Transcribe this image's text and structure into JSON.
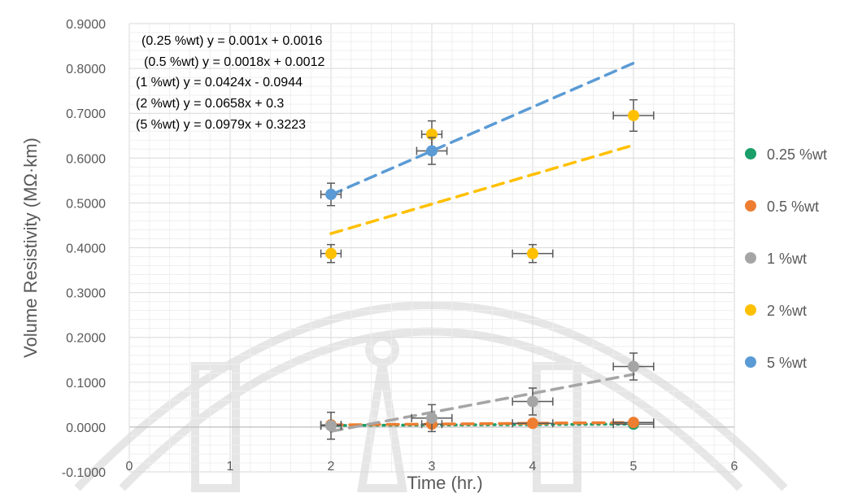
{
  "chart_data": {
    "type": "scatter",
    "title": "",
    "xlabel": "Time (hr.)",
    "ylabel": "Volume Resistivity (MΩ·km)",
    "xlim": [
      0,
      6
    ],
    "ylim": [
      -0.1,
      0.9
    ],
    "x_ticks": [
      "0",
      "1",
      "2",
      "3",
      "4",
      "5",
      "6"
    ],
    "y_ticks": [
      "-0.1000",
      "0.0000",
      "0.1000",
      "0.2000",
      "0.3000",
      "0.4000",
      "0.5000",
      "0.6000",
      "0.7000",
      "0.8000",
      "0.9000"
    ],
    "grid": true,
    "legend_position": "right",
    "series": [
      {
        "name": "0.25 %wt",
        "color": "#1a9e6a",
        "trend_style": "dotted",
        "points": [
          {
            "x": 2,
            "y": 0.0036,
            "xerr": 0.1,
            "yerr": 0.005
          },
          {
            "x": 5,
            "y": 0.0066,
            "xerr": 0.2,
            "yerr": 0.006
          }
        ],
        "trendline": {
          "slope": 0.001,
          "intercept": 0.0016,
          "x_range": [
            2,
            5
          ]
        },
        "equation": "(0.25 %wt)  y = 0.001x + 0.0016"
      },
      {
        "name": "0.5 %wt",
        "color": "#ed7d31",
        "trend_style": "dashed",
        "points": [
          {
            "x": 2,
            "y": 0.0048,
            "xerr": 0.1,
            "yerr": 0.005
          },
          {
            "x": 3,
            "y": 0.0066,
            "xerr": 0.1,
            "yerr": 0.006
          },
          {
            "x": 4,
            "y": 0.0084,
            "xerr": 0.2,
            "yerr": 0.006
          },
          {
            "x": 5,
            "y": 0.0102,
            "xerr": 0.2,
            "yerr": 0.006
          }
        ],
        "trendline": {
          "slope": 0.0018,
          "intercept": 0.0012,
          "x_range": [
            2,
            5
          ]
        },
        "equation": "(0.5 %wt)  y = 0.0018x + 0.0012"
      },
      {
        "name": "1 %wt",
        "color": "#a5a5a5",
        "trend_style": "dashed",
        "points": [
          {
            "x": 2,
            "y": 0.003,
            "xerr": 0.1,
            "yerr": 0.03
          },
          {
            "x": 3,
            "y": 0.02,
            "xerr": 0.2,
            "yerr": 0.03
          },
          {
            "x": 4,
            "y": 0.057,
            "xerr": 0.2,
            "yerr": 0.03
          },
          {
            "x": 5,
            "y": 0.135,
            "xerr": 0.2,
            "yerr": 0.03
          }
        ],
        "trendline": {
          "slope": 0.0424,
          "intercept": -0.0944,
          "x_range": [
            2,
            5
          ]
        },
        "equation": "(1 %wt) y = 0.0424x - 0.0944"
      },
      {
        "name": "2 %wt",
        "color": "#ffc000",
        "trend_style": "dashed",
        "points": [
          {
            "x": 2,
            "y": 0.387,
            "xerr": 0.1,
            "yerr": 0.02
          },
          {
            "x": 3,
            "y": 0.653,
            "xerr": 0.1,
            "yerr": 0.03
          },
          {
            "x": 4,
            "y": 0.387,
            "xerr": 0.2,
            "yerr": 0.02
          },
          {
            "x": 5,
            "y": 0.695,
            "xerr": 0.2,
            "yerr": 0.035
          }
        ],
        "trendline": {
          "slope": 0.0658,
          "intercept": 0.3,
          "x_range": [
            2,
            5
          ]
        },
        "equation": "(2 %wt) y = 0.0658x + 0.3"
      },
      {
        "name": "5 %wt",
        "color": "#5b9bd5",
        "trend_style": "dashed",
        "points": [
          {
            "x": 2,
            "y": 0.519,
            "xerr": 0.1,
            "yerr": 0.025
          },
          {
            "x": 3,
            "y": 0.616,
            "xerr": 0.15,
            "yerr": 0.03
          }
        ],
        "trendline": {
          "slope": 0.0979,
          "intercept": 0.3223,
          "x_range": [
            2,
            5
          ]
        },
        "equation": "(5 %wt) y = 0.0979x + 0.3223"
      }
    ]
  }
}
